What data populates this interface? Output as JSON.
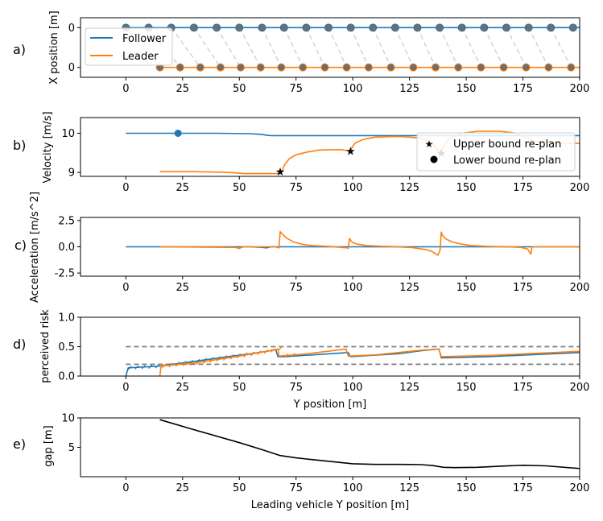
{
  "chart_data": [
    {
      "panel": "a)",
      "type": "line",
      "ylabel": "X position [m]",
      "xlim": [
        -20,
        200
      ],
      "ylim": [
        -0.15,
        0.15
      ],
      "xticks": [
        0,
        25,
        50,
        75,
        100,
        125,
        150,
        175,
        200
      ],
      "yticks": [
        0,
        0
      ],
      "series": [
        {
          "name": "Follower",
          "color": "#1f77b4",
          "x": [
            0,
            200
          ],
          "y": [
            0,
            0
          ]
        },
        {
          "name": "Leader",
          "color": "#ff7f0e",
          "x": [
            15,
            200
          ],
          "y": [
            0,
            0
          ]
        }
      ],
      "follower_markers_x": [
        0,
        10,
        20,
        30,
        40,
        50,
        60,
        69.7,
        79.5,
        89.3,
        99.1,
        108.9,
        118.7,
        128.5,
        138.3,
        148.1,
        157.9,
        167.7,
        177.5,
        187.3,
        197.1
      ],
      "leader_markers_x": [
        15,
        23.9,
        32.8,
        41.7,
        50.6,
        59.4,
        68.5,
        78.0,
        87.7,
        97.3,
        107.0,
        116.8,
        126.7,
        136.5,
        146.5,
        156.5,
        166.5,
        176.4,
        186.3,
        196.2
      ],
      "legend": [
        "Follower",
        "Leader"
      ]
    },
    {
      "panel": "b)",
      "type": "line",
      "ylabel": "Velocity [m/s]",
      "xlim": [
        -20,
        200
      ],
      "ylim": [
        8.9,
        10.4
      ],
      "xticks": [
        0,
        25,
        50,
        75,
        100,
        125,
        150,
        175,
        200
      ],
      "yticks": [
        9,
        10
      ],
      "series": [
        {
          "name": "Follower",
          "color": "#1f77b4",
          "x": [
            0,
            20,
            40,
            55,
            60,
            62,
            64,
            80,
            100,
            130,
            160,
            200
          ],
          "y": [
            10.0,
            10.0,
            10.0,
            9.99,
            9.97,
            9.95,
            9.94,
            9.94,
            9.94,
            9.94,
            9.94,
            9.94
          ]
        },
        {
          "name": "Leader",
          "color": "#ff7f0e",
          "x": [
            15,
            30,
            45,
            50,
            52,
            60,
            67.5,
            68.5,
            70,
            72,
            75,
            80,
            85,
            90,
            95,
            98.5,
            99.5,
            101,
            105,
            110,
            120,
            130,
            135,
            138.5,
            139.5,
            142,
            148,
            155,
            165,
            172,
            176,
            180,
            190,
            200
          ],
          "y": [
            9.02,
            9.02,
            9.0,
            8.98,
            8.97,
            8.97,
            8.97,
            9.0,
            9.2,
            9.35,
            9.45,
            9.52,
            9.57,
            9.58,
            9.58,
            9.55,
            9.62,
            9.75,
            9.85,
            9.9,
            9.92,
            9.88,
            9.75,
            9.5,
            9.6,
            9.85,
            10.0,
            10.05,
            10.05,
            10.0,
            9.9,
            9.8,
            9.75,
            9.74
          ]
        }
      ],
      "upper_replan": {
        "x": [
          68,
          99,
          139
        ],
        "y": [
          9.02,
          9.55,
          9.5
        ],
        "marker": "star",
        "color": "#ff7f0e"
      },
      "lower_replan": {
        "x": [
          23
        ],
        "y": [
          10.0
        ],
        "marker": "circle",
        "color": "#1f77b4"
      },
      "legend": [
        "Upper bound re-plan",
        "Lower bound re-plan"
      ]
    },
    {
      "panel": "c)",
      "type": "line",
      "ylabel": "Acceleration [m/s^2]",
      "xlim": [
        -20,
        200
      ],
      "ylim": [
        -2.8,
        2.8
      ],
      "xticks": [
        0,
        25,
        50,
        75,
        100,
        125,
        150,
        175,
        200
      ],
      "yticks": [
        -2.5,
        0.0,
        2.5
      ],
      "series": [
        {
          "name": "Follower",
          "color": "#1f77b4",
          "x": [
            0,
            55,
            60,
            62,
            64,
            200
          ],
          "y": [
            0,
            0,
            -0.05,
            -0.1,
            0,
            0
          ]
        },
        {
          "name": "Leader",
          "color": "#ff7f0e",
          "x": [
            15,
            48,
            50,
            51,
            52,
            66,
            67.5,
            68,
            69,
            71,
            74,
            78,
            83,
            90,
            97.5,
            98,
            98.6,
            99.3,
            100,
            102,
            106,
            112,
            118,
            126,
            132,
            135,
            137.5,
            138.5,
            139,
            139.5,
            141,
            144,
            148,
            152,
            158,
            168,
            174,
            177,
            178.5,
            179,
            180,
            190,
            200
          ],
          "y": [
            0,
            -0.05,
            -0.15,
            -0.05,
            0,
            0,
            -0.1,
            1.45,
            1.2,
            0.8,
            0.45,
            0.22,
            0.1,
            0.03,
            -0.1,
            -0.15,
            0.8,
            0.55,
            0.4,
            0.25,
            0.12,
            0.05,
            0.02,
            -0.08,
            -0.25,
            -0.45,
            -0.8,
            -0.3,
            1.4,
            1.1,
            0.75,
            0.45,
            0.25,
            0.12,
            0.05,
            0.0,
            -0.05,
            -0.2,
            -0.7,
            0,
            0,
            0,
            0
          ]
        }
      ]
    },
    {
      "panel": "d)",
      "type": "line",
      "ylabel": "perceived risk",
      "xlabel": "Y position [m]",
      "xlim": [
        -20,
        200
      ],
      "ylim": [
        0.0,
        1.0
      ],
      "xticks": [
        0,
        25,
        50,
        75,
        100,
        125,
        150,
        175,
        200
      ],
      "yticks": [
        0.0,
        0.5,
        1.0
      ],
      "thresholds": [
        0.2,
        0.5
      ],
      "series": [
        {
          "name": "Follower",
          "color": "#1f77b4",
          "x": [
            0,
            1,
            15,
            30,
            45,
            55,
            62,
            66,
            67,
            70,
            90,
            98,
            99,
            120,
            130,
            138,
            139,
            160,
            200
          ],
          "y": [
            0.0,
            0.14,
            0.17,
            0.25,
            0.33,
            0.38,
            0.42,
            0.45,
            0.33,
            0.33,
            0.38,
            0.4,
            0.33,
            0.38,
            0.43,
            0.46,
            0.31,
            0.33,
            0.4
          ]
        },
        {
          "name": "Leader",
          "color": "#ff7f0e",
          "x": [
            15,
            15.5,
            30,
            50,
            62,
            67,
            67.5,
            80,
            97,
            98,
            110,
            130,
            138,
            139,
            160,
            200
          ],
          "y": [
            0.0,
            0.17,
            0.22,
            0.34,
            0.42,
            0.46,
            0.34,
            0.38,
            0.46,
            0.34,
            0.36,
            0.44,
            0.46,
            0.33,
            0.35,
            0.42
          ]
        }
      ]
    },
    {
      "panel": "e)",
      "type": "line",
      "ylabel": "gap [m]",
      "xlabel": "Leading vehicle Y position [m]",
      "xlim": [
        -20,
        200
      ],
      "ylim": [
        0,
        10
      ],
      "xticks": [
        0,
        25,
        50,
        75,
        100,
        125,
        150,
        175,
        200
      ],
      "yticks": [
        5,
        10
      ],
      "series": [
        {
          "name": "gap",
          "color": "#000000",
          "x": [
            15,
            30,
            50,
            60,
            68,
            75,
            85,
            100,
            110,
            120,
            130,
            135,
            140,
            145,
            155,
            165,
            175,
            185,
            200
          ],
          "y": [
            9.7,
            8.0,
            5.8,
            4.6,
            3.6,
            3.2,
            2.8,
            2.2,
            2.1,
            2.1,
            2.05,
            1.9,
            1.6,
            1.55,
            1.6,
            1.8,
            1.95,
            1.85,
            1.4
          ]
        }
      ]
    }
  ]
}
